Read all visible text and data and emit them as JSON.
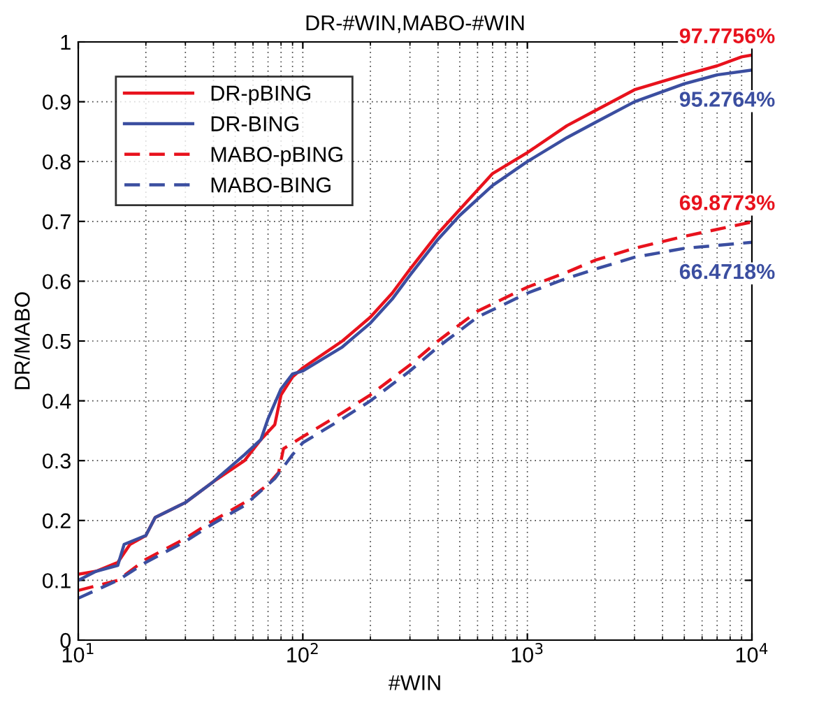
{
  "chart_data": {
    "type": "line",
    "title": "DR-#WIN,MABO-#WIN",
    "xlabel": "#WIN",
    "ylabel": "DR/MABO",
    "log": "x",
    "grid": true,
    "legend": "top left",
    "xlim": [
      10,
      10000
    ],
    "xticks": [
      {
        "value": 10,
        "label": "10$^{1}$"
      },
      {
        "value": 100,
        "label": "10$^{2}$"
      },
      {
        "value": 1000,
        "label": "10$^{3}$"
      },
      {
        "value": 10000,
        "label": "10$^{4}$"
      }
    ],
    "ylim": [
      0,
      1
    ],
    "yticks": [
      0,
      0.1,
      0.2,
      0.3,
      0.4,
      0.5,
      0.6,
      0.7,
      0.8,
      0.9,
      1
    ],
    "series": [
      {
        "name": "DR-pBING",
        "color": "#e8121d",
        "line_style": "solid",
        "x": [
          10,
          12,
          15,
          17,
          20,
          22,
          30,
          40,
          55,
          65,
          75,
          80,
          90,
          100,
          150,
          200,
          250,
          300,
          400,
          500,
          700,
          1000,
          1500,
          2000,
          3000,
          5000,
          7000,
          9000,
          10000
        ],
        "values": [
          0.11,
          0.115,
          0.13,
          0.16,
          0.175,
          0.205,
          0.23,
          0.265,
          0.3,
          0.335,
          0.36,
          0.41,
          0.44,
          0.455,
          0.5,
          0.54,
          0.58,
          0.62,
          0.68,
          0.72,
          0.78,
          0.815,
          0.86,
          0.885,
          0.92,
          0.945,
          0.96,
          0.975,
          0.978
        ]
      },
      {
        "name": "DR-BING",
        "color": "#3b4ea0",
        "line_style": "solid",
        "x": [
          10,
          12,
          15,
          16,
          20,
          22,
          30,
          40,
          55,
          65,
          70,
          80,
          90,
          100,
          150,
          200,
          250,
          300,
          400,
          500,
          700,
          1000,
          1500,
          2000,
          3000,
          5000,
          7000,
          10000
        ],
        "values": [
          0.1,
          0.115,
          0.125,
          0.16,
          0.175,
          0.205,
          0.23,
          0.265,
          0.31,
          0.335,
          0.37,
          0.42,
          0.445,
          0.45,
          0.49,
          0.53,
          0.57,
          0.61,
          0.67,
          0.71,
          0.76,
          0.8,
          0.84,
          0.865,
          0.9,
          0.93,
          0.945,
          0.953
        ]
      },
      {
        "name": "MABO-pBING",
        "color": "#e8121d",
        "line_style": "dashed",
        "x": [
          10,
          15,
          20,
          30,
          40,
          55,
          70,
          78,
          82,
          100,
          150,
          200,
          300,
          400,
          600,
          1000,
          1500,
          2000,
          3000,
          5000,
          10000
        ],
        "values": [
          0.083,
          0.1,
          0.135,
          0.17,
          0.2,
          0.23,
          0.26,
          0.28,
          0.32,
          0.34,
          0.38,
          0.41,
          0.46,
          0.5,
          0.55,
          0.59,
          0.615,
          0.635,
          0.655,
          0.675,
          0.699
        ]
      },
      {
        "name": "MABO-BING",
        "color": "#3b4ea0",
        "line_style": "dashed",
        "x": [
          10,
          15,
          20,
          30,
          40,
          55,
          75,
          90,
          100,
          150,
          200,
          300,
          400,
          600,
          1000,
          1500,
          2000,
          3000,
          5000,
          10000
        ],
        "values": [
          0.07,
          0.1,
          0.13,
          0.165,
          0.195,
          0.225,
          0.27,
          0.31,
          0.33,
          0.37,
          0.4,
          0.45,
          0.49,
          0.54,
          0.58,
          0.605,
          0.62,
          0.64,
          0.655,
          0.665
        ]
      }
    ],
    "annotations": [
      "97.7756%",
      "95.2764%",
      "69.8773%",
      "66.4718%"
    ]
  }
}
